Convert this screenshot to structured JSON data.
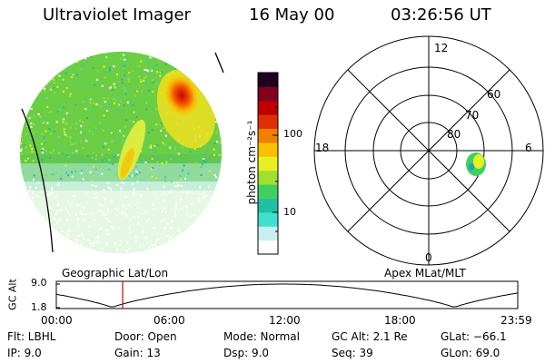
{
  "header": {
    "title": "Ultraviolet Imager",
    "date": "16 May 00",
    "time": "03:26:56 UT"
  },
  "colorbar": {
    "label": "photon cm⁻²s⁻¹",
    "ticks": [
      "100",
      "10"
    ],
    "colors": [
      "#ffffff",
      "#c8f0f0",
      "#40e0d0",
      "#20c0a0",
      "#40d060",
      "#a0e030",
      "#e8f020",
      "#f8c000",
      "#f08000",
      "#e03000",
      "#c00000",
      "#800020",
      "#200020"
    ]
  },
  "polar": {
    "mlt_labels": {
      "top": "12",
      "left": "18",
      "right": "6",
      "bottom": "0"
    },
    "lat_labels": [
      "60",
      "70",
      "80"
    ]
  },
  "timeline": {
    "left_label": "Geographic Lat/Lon",
    "right_label": "Apex MLat/MLT",
    "axis_label": "GC Alt",
    "y_ticks": [
      "9.0",
      "1.8"
    ],
    "x_ticks": [
      "00:00",
      "06:00",
      "12:00",
      "18:00",
      "23:59"
    ],
    "current_time_hours": 3.45
  },
  "info": {
    "filter": "Flt: LBHL",
    "ip": "IP:  9.0",
    "door": "Door: Open",
    "gain": "Gain: 13",
    "mode": "Mode: Normal",
    "dsp": "Dsp:    9.0",
    "gc_alt": "GC Alt: 2.1 Re",
    "seq": "Seq: 39",
    "glat": "GLat: −66.1",
    "glon": "GLon:  69.0"
  }
}
